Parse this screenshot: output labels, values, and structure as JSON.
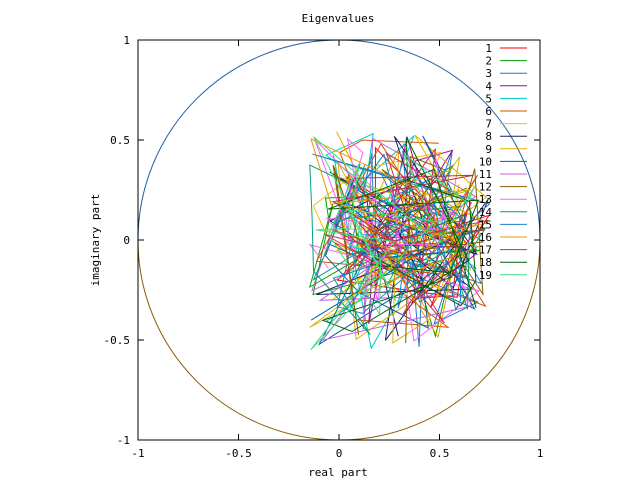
{
  "chart_data": {
    "type": "line",
    "title": "Eigenvalues",
    "xlabel": "real part",
    "ylabel": "imaginary part",
    "xlim": [
      -1,
      1
    ],
    "ylim": [
      -1,
      1
    ],
    "x_ticks": [
      "-1",
      "-0.5",
      "0",
      "0.5",
      "1"
    ],
    "y_ticks": [
      "-1",
      "-0.5",
      "0",
      "0.5",
      "1"
    ],
    "grid": false,
    "legend_position": "top-right",
    "unit_circle": {
      "upper_color": "#1f5fa6",
      "lower_color": "#8b5a00"
    },
    "series": [
      {
        "name": "1",
        "color": "#ff0000"
      },
      {
        "name": "2",
        "color": "#00a000"
      },
      {
        "name": "3",
        "color": "#1f77d0"
      },
      {
        "name": "4",
        "color": "#a000a0"
      },
      {
        "name": "5",
        "color": "#00c8c8"
      },
      {
        "name": "6",
        "color": "#d05000"
      },
      {
        "name": "7",
        "color": "#f0c000"
      },
      {
        "name": "8",
        "color": "#202060"
      },
      {
        "name": "9",
        "color": "#e0b000"
      },
      {
        "name": "10",
        "color": "#0060a0"
      },
      {
        "name": "11",
        "color": "#c060e0"
      },
      {
        "name": "12",
        "color": "#8b5a00"
      },
      {
        "name": "13",
        "color": "#ff60ff"
      },
      {
        "name": "14",
        "color": "#00a080"
      },
      {
        "name": "15",
        "color": "#2080c0"
      },
      {
        "name": "16",
        "color": "#e0a000"
      },
      {
        "name": "17",
        "color": "#c03050"
      },
      {
        "name": "18",
        "color": "#006000"
      },
      {
        "name": "19",
        "color": "#40e080"
      }
    ]
  }
}
